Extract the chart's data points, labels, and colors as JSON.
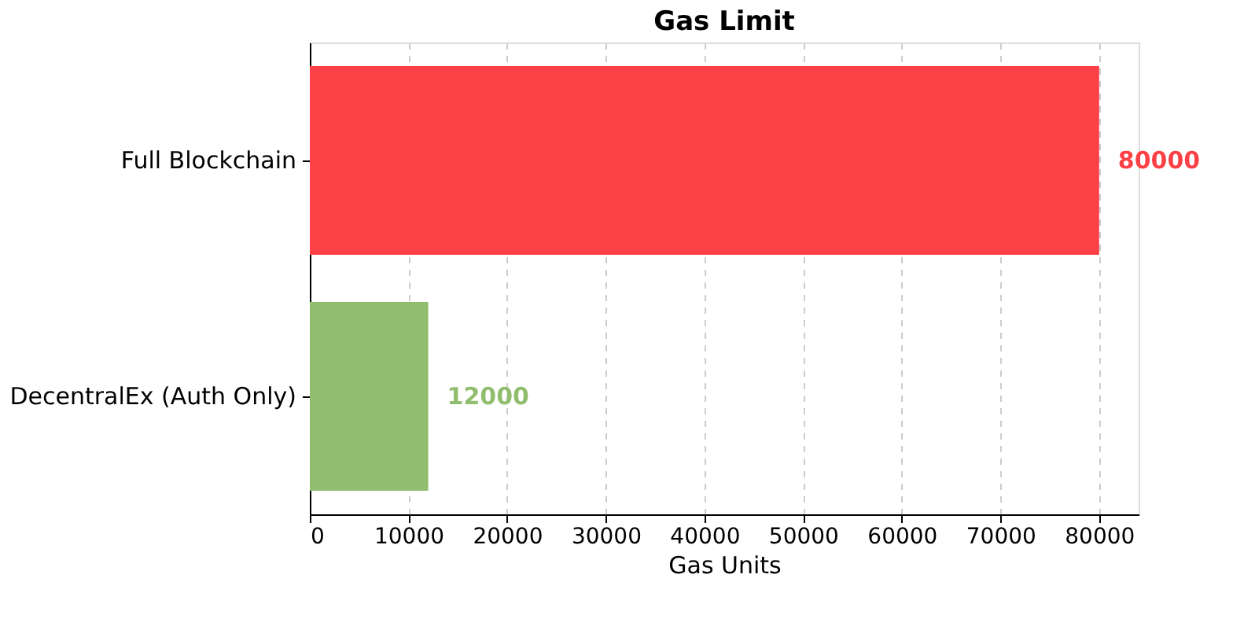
{
  "chart_data": {
    "type": "bar",
    "orientation": "horizontal",
    "title": "Gas Limit",
    "xlabel": "Gas Units",
    "categories": [
      "Full Blockchain",
      "DecentralEx (Auth Only)"
    ],
    "values": [
      80000,
      12000
    ],
    "colors": [
      "#fc4146",
      "#90bd6e"
    ],
    "xlim": [
      0,
      84000
    ],
    "xticks": [
      0,
      10000,
      20000,
      30000,
      40000,
      50000,
      60000,
      70000,
      80000
    ],
    "grid": "x",
    "data_labels": true
  }
}
